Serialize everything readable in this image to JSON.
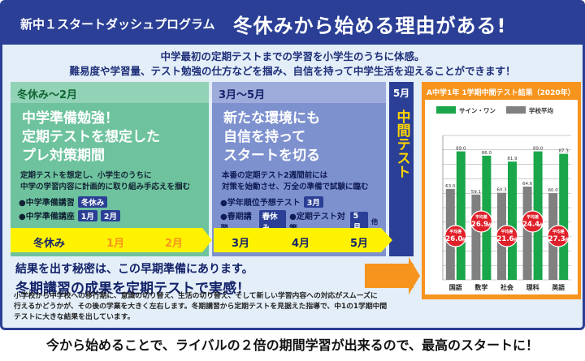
{
  "header": {
    "program": "新中１スタートダッシュプログラム",
    "headline": "冬休みから始める理由がある!"
  },
  "intro": {
    "line1": "中学最初の定期テストまでの学習を小学生のうちに体感。",
    "line2": "難易度や学習量、テスト勉強の仕方などを掴み、自信を持って中学生活を迎えることができます！"
  },
  "col1": {
    "head": "冬休み～2月",
    "big": [
      "中学準備勉強！",
      "定期テストを想定した",
      "プレ対策期間"
    ],
    "small": [
      "定期テストを想定し、小学生のうちに",
      "中学の学習内容に計画的に取り組み手応えを掴む"
    ],
    "bullet1": "●中学準備講習",
    "bullet1_tag": "冬休み",
    "bullet2": "●中学準備講座",
    "bullet2_tags": [
      "1月",
      "2月"
    ]
  },
  "col2": {
    "head": "3月～5月",
    "big": [
      "新たな環境にも",
      "自信を持って",
      "スタートを切る"
    ],
    "small": [
      "本番の定期テスト2週間前には",
      "対策を始動させ、万全の準備で試験に臨む"
    ],
    "bullet1": "●学年順位予想テスト",
    "bullet1_tag": "3月",
    "bullet2a": "●春期講習",
    "bullet2a_tag": "春休み",
    "bullet2b": "●定期テスト対策",
    "bullet2b_tag": "5月",
    "bullet2b_suffix": "他"
  },
  "col3": {
    "head": "5月",
    "vertical": "中間テスト"
  },
  "timeline": {
    "labels": [
      "冬休み",
      "1月",
      "2月",
      "3月",
      "4月",
      "5月"
    ]
  },
  "secret": {
    "line1": "結果を出す秘密は、この早期準備にあります。",
    "line2": "冬期講習の成果を定期テストで実感！"
  },
  "description": [
    "小学校から中学校への移行期に、意識の切り替え、生活の切り替え、そして新しい学習内容への対応がスムーズに",
    "行えるかどうかが、その後の学業を大きく左右します。冬期講習から定期テストを見据えた指導で、中1の1学期中間",
    "テストに大きな結果を出しています。"
  ],
  "chart_data": {
    "type": "bar",
    "title": "A中学1年 1学期中間テスト結果（2020年）",
    "categories": [
      "国語",
      "数学",
      "社会",
      "理科",
      "英語"
    ],
    "series": [
      {
        "name": "サイン・ワン",
        "values": [
          89.0,
          86.0,
          81.9,
          89.0,
          87.3
        ]
      },
      {
        "name": "学校平均",
        "values": [
          63.0,
          59.1,
          60.3,
          64.6,
          60.0
        ]
      }
    ],
    "ylim": [
      0,
      100
    ],
    "badges": [
      {
        "prefix": "平均差",
        "value": "26.0",
        "unit": "点"
      },
      {
        "prefix": "平均差",
        "value": "26.9",
        "unit": "点"
      },
      {
        "prefix": "平均差",
        "value": "21.6",
        "unit": "点"
      },
      {
        "prefix": "平均差",
        "value": "24.4",
        "unit": "点"
      },
      {
        "prefix": "平均差",
        "value": "27.3",
        "unit": "点"
      }
    ],
    "colors": {
      "series1": "#1aa64a",
      "series2": "#808080",
      "badge": "#e0202a"
    }
  },
  "footer": "今から始めることで、ライバルの２倍の期間学習が出来るので、最高のスタートに！"
}
